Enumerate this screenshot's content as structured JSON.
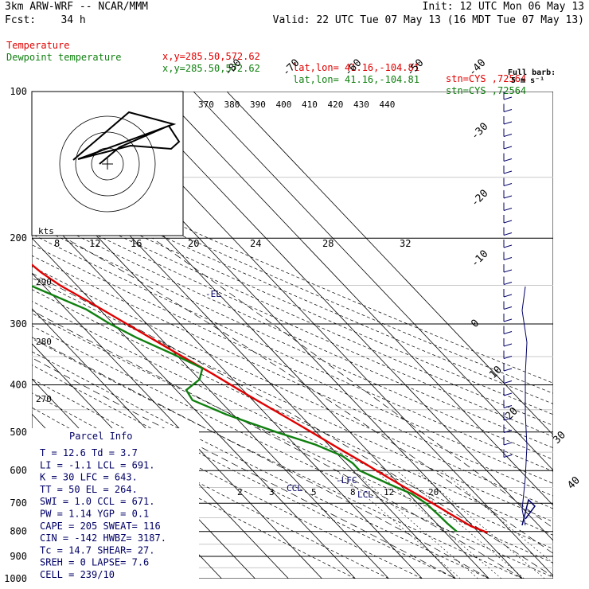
{
  "header": {
    "model": "3km ARW-WRF -- NCAR/MMM",
    "init": "Init: 12 UTC Mon 06 May 13",
    "fcst_label": "Fcst:",
    "fcst_value": "34 h",
    "valid": "Valid: 22 UTC Tue 07 May 13 (16 MDT Tue 07 May 13)"
  },
  "legend": [
    {
      "name": "Temperature",
      "xy": "x,y=285.50,572.62",
      "latlon": "lat,lon= 41.16,-104.81",
      "stn": "stn=CYS ,72564",
      "color": "#e00000"
    },
    {
      "name": "Dewpoint temperature",
      "xy": "x,y=285.50,572.62",
      "latlon": "lat,lon= 41.16,-104.81",
      "stn": "stn=CYS ,72564",
      "color": "#108010"
    }
  ],
  "wind_barb_label": "Full barb:",
  "wind_barb_units": "5 m s⁻¹",
  "hodograph_units": "kts",
  "hodograph_speed_labels": [
    "8",
    "12",
    "16",
    "20",
    "24",
    "28",
    "32"
  ],
  "theta_labels": [
    "370",
    "380",
    "390",
    "400",
    "410",
    "420",
    "430",
    "440"
  ],
  "theta_e_labels": [
    "290",
    "280",
    "270"
  ],
  "mixing_ratio_labels": [
    "2",
    "3",
    "5",
    "8",
    "12",
    "20"
  ],
  "parcel_markers": {
    "el": "-EL",
    "lfc": "-LFC",
    "lcl": "LCL",
    "ccl": "CCL"
  },
  "parcel_info": {
    "title": "Parcel Info",
    "rows": [
      "T  =   12.6  Td =   3.7",
      "LI =   -1.1  LCL =  691.",
      "K  =     30  LFC =  643.",
      "TT =     50  EL  =  264.",
      "SWI =   1.0  CCL =  671.",
      "PW =   1.14  YGP =   0.1",
      "CAPE =  205  SWEAT=  116",
      "CIN =  -142  HWBZ= 3187.",
      "Tc =   14.7  SHEAR=  27.",
      "SREH =    0  LAPSE=  7.6",
      "CELL = 239/10"
    ]
  },
  "chart_data": {
    "type": "line",
    "title": "",
    "xlabel": "",
    "ylabel": "",
    "y_axis": "pressure (hPa), log scale",
    "ylim": [
      1000,
      100
    ],
    "pressure_ticks": [
      100,
      200,
      300,
      400,
      500,
      600,
      700,
      800,
      900,
      1000
    ],
    "skewed_isotherm_labels": [
      "-80",
      "-70",
      "-60",
      "-50",
      "-40",
      "-30",
      "-20",
      "-10",
      "0",
      "10",
      "20",
      "30",
      "40"
    ],
    "grid": true,
    "series": [
      {
        "name": "Temperature",
        "color": "#e00000",
        "pressure": [
          805,
          780,
          740,
          700,
          660,
          620,
          580,
          540,
          500,
          460,
          420,
          380,
          340,
          300,
          270,
          250,
          235,
          220,
          200,
          185,
          170,
          150,
          135,
          120,
          110,
          100
        ],
        "temperature": [
          12.6,
          9.5,
          7,
          4.5,
          1.5,
          -1.5,
          -4.5,
          -8,
          -11.5,
          -15.5,
          -20,
          -24.5,
          -30,
          -36,
          -41,
          -45,
          -47,
          -48,
          -47.5,
          -47,
          -47.5,
          -49,
          -50.5,
          -53,
          -55,
          -57
        ]
      },
      {
        "name": "Dewpoint temperature",
        "color": "#108010",
        "pressure": [
          800,
          770,
          740,
          700,
          670,
          640,
          600,
          580,
          560,
          530,
          500,
          460,
          430,
          410,
          390,
          370,
          345,
          320,
          300,
          280,
          250,
          220,
          200,
          180,
          160,
          140,
          120,
          110,
          100
        ],
        "temperature": [
          3.7,
          3.2,
          3,
          2.5,
          1,
          -3,
          -8,
          -8,
          -9,
          -14,
          -22,
          -32,
          -38,
          -37,
          -30,
          -26,
          -31,
          -37,
          -41,
          -44,
          -54,
          -59,
          -64,
          -66,
          -67,
          -69,
          -72,
          -75,
          -77
        ]
      }
    ]
  }
}
